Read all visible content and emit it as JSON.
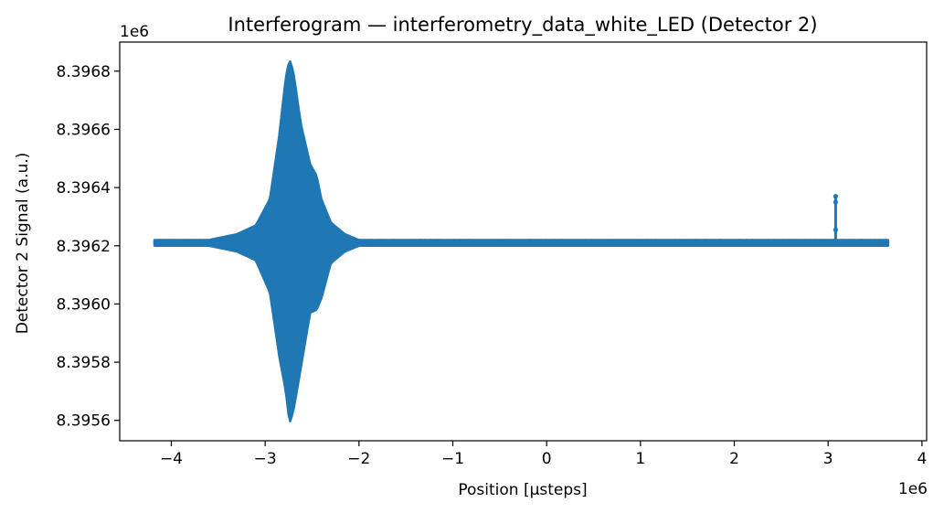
{
  "chart_data": {
    "type": "line",
    "title": "Interferogram — interferometry_data_white_LED (Detector 2)",
    "xlabel": "Position [µsteps]",
    "ylabel": "Detector 2 Signal (a.u.)",
    "x_offset_label": "1e6",
    "y_offset_label": "1e6",
    "xlim": [
      -4.55,
      4.05
    ],
    "ylim": [
      8.39553,
      8.3969
    ],
    "x_ticks": [
      -4,
      -3,
      -2,
      -1,
      0,
      1,
      2,
      3,
      4
    ],
    "x_tick_labels": [
      "−4",
      "−3",
      "−2",
      "−1",
      "0",
      "1",
      "2",
      "3",
      "4"
    ],
    "y_ticks": [
      8.3956,
      8.3958,
      8.396,
      8.3962,
      8.3964,
      8.3966,
      8.3968
    ],
    "y_tick_labels": [
      "8.3956",
      "8.3958",
      "8.3960",
      "8.3962",
      "8.3964",
      "8.3966",
      "8.3968"
    ],
    "grid": false,
    "color": "#1f77b4",
    "series": [
      {
        "x_range": [
          -4.18,
          3.64
        ],
        "baseline": 8.39621,
        "baseline_noise": 6e-06,
        "envelope": [
          {
            "x": -4.18,
            "upper": 8.39622,
            "lower": 8.3962
          },
          {
            "x": -3.6,
            "upper": 8.39622,
            "lower": 8.3962
          },
          {
            "x": -3.3,
            "upper": 8.39624,
            "lower": 8.39618
          },
          {
            "x": -3.1,
            "upper": 8.39627,
            "lower": 8.39615
          },
          {
            "x": -2.95,
            "upper": 8.39636,
            "lower": 8.39604
          },
          {
            "x": -2.85,
            "upper": 8.39658,
            "lower": 8.39582
          },
          {
            "x": -2.78,
            "upper": 8.39678,
            "lower": 8.3957
          },
          {
            "x": -2.74,
            "upper": 8.39684,
            "lower": 8.39559
          },
          {
            "x": -2.7,
            "upper": 8.3968,
            "lower": 8.39563
          },
          {
            "x": -2.62,
            "upper": 8.39662,
            "lower": 8.39578
          },
          {
            "x": -2.52,
            "upper": 8.39648,
            "lower": 8.39597
          },
          {
            "x": -2.45,
            "upper": 8.39644,
            "lower": 8.39598
          },
          {
            "x": -2.4,
            "upper": 8.39636,
            "lower": 8.39602
          },
          {
            "x": -2.3,
            "upper": 8.39628,
            "lower": 8.39614
          },
          {
            "x": -2.15,
            "upper": 8.39624,
            "lower": 8.39618
          },
          {
            "x": -2.0,
            "upper": 8.39622,
            "lower": 8.3962
          },
          {
            "x": 3.64,
            "upper": 8.39622,
            "lower": 8.3962
          }
        ],
        "spike": {
          "x": 3.08,
          "peak": 8.39637,
          "low": 8.39621
        }
      }
    ]
  }
}
